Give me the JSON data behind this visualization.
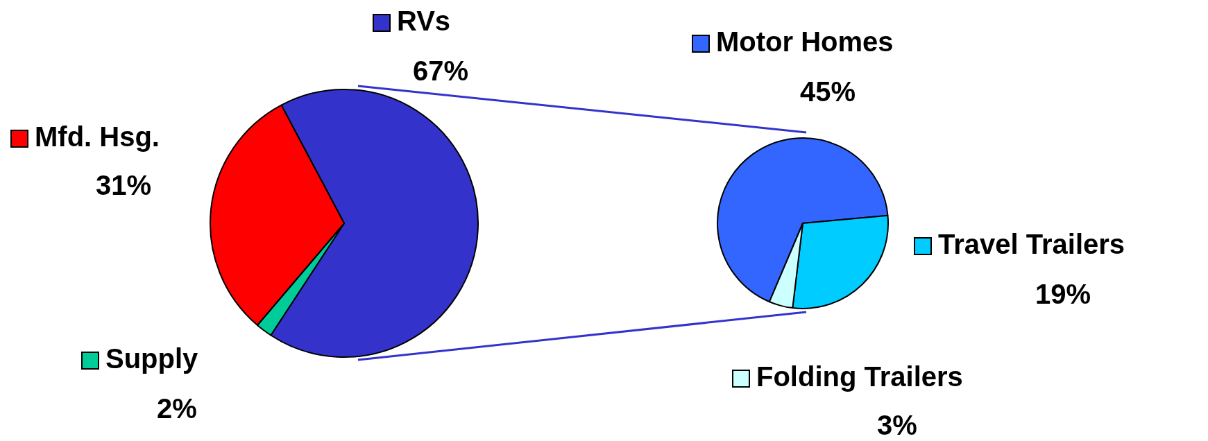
{
  "chart_data": [
    {
      "type": "pie",
      "categories": [
        "RVs",
        "Supply",
        "Mfd. Hsg."
      ],
      "values": [
        67,
        2,
        31
      ],
      "colors": [
        "#3333cc",
        "#00cc99",
        "#ff0000"
      ],
      "value_labels": [
        "67%",
        "2%",
        "31%"
      ],
      "legend": "left"
    },
    {
      "type": "pie",
      "categories": [
        "Motor Homes",
        "Travel Trailers",
        "Folding Trailers"
      ],
      "values": [
        45,
        19,
        3
      ],
      "colors": [
        "#3366ff",
        "#00ccff",
        "#ccffff"
      ],
      "value_labels": [
        "45%",
        "19%",
        "3%"
      ],
      "legend": "right"
    }
  ]
}
